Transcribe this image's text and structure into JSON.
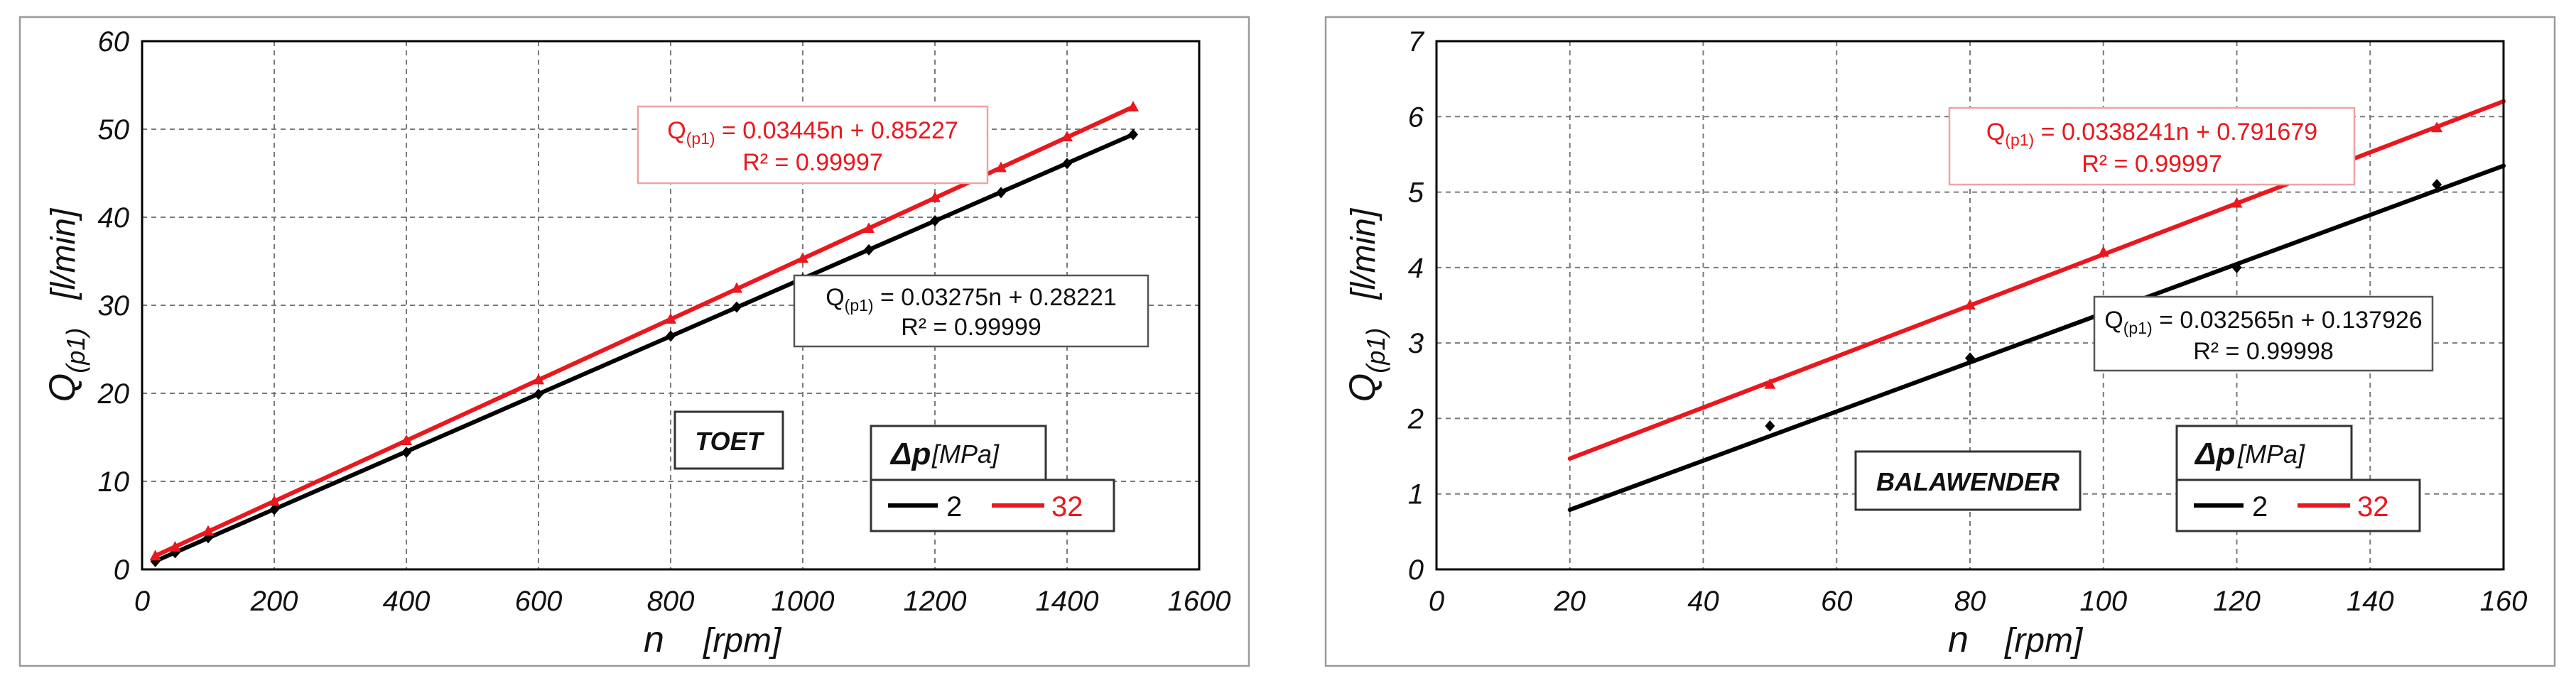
{
  "colors": {
    "series1": "#000000",
    "series2": "#e8181e",
    "grid": "#7a7a7a"
  },
  "chart_data": [
    {
      "type": "line",
      "xlabel": "n",
      "xunit": "[rpm]",
      "ylabel_main": "Q",
      "ylabel_sub": "(p1)",
      "yunit": "[l/min]",
      "xlim": [
        0,
        1600
      ],
      "ylim": [
        0,
        60
      ],
      "xticks": [
        0,
        200,
        400,
        600,
        800,
        1000,
        1200,
        1400,
        1600
      ],
      "yticks": [
        0,
        10,
        20,
        30,
        40,
        50,
        60
      ],
      "grid": true,
      "label": "TOET",
      "legend": {
        "title": "Δp",
        "unit": "[MPa]"
      },
      "series": [
        {
          "name": "2",
          "color": "#000000",
          "marker": "diamond",
          "fit": {
            "slope": 0.03275,
            "intercept": 0.28221,
            "xrange": [
              20,
              1500
            ]
          },
          "equation_prefix": "Q",
          "equation_sub": "(p1)",
          "equation_rest": " = 0.03275n + 0.28221",
          "r2": "R² = 0.99999",
          "x": [
            20,
            50,
            100,
            200,
            400,
            600,
            800,
            900,
            1000,
            1100,
            1200,
            1300,
            1400,
            1500
          ],
          "y": [
            0.9,
            1.9,
            3.6,
            6.8,
            13.3,
            19.9,
            26.5,
            29.8,
            33.0,
            36.3,
            39.6,
            42.8,
            46.1,
            49.4
          ]
        },
        {
          "name": "32",
          "color": "#e8181e",
          "marker": "triangle",
          "fit": {
            "slope": 0.03445,
            "intercept": 0.85227,
            "xrange": [
              20,
              1500
            ]
          },
          "equation_prefix": "Q",
          "equation_sub": "(p1)",
          "equation_rest": " = 0.03445n + 0.85227",
          "r2": "R² = 0.99997",
          "x": [
            20,
            50,
            100,
            200,
            400,
            600,
            800,
            900,
            1000,
            1100,
            1200,
            1300,
            1400,
            1500
          ],
          "y": [
            1.5,
            2.5,
            4.3,
            7.7,
            14.6,
            21.5,
            28.4,
            31.9,
            35.3,
            38.7,
            42.2,
            45.6,
            49.1,
            52.5
          ]
        }
      ]
    },
    {
      "type": "line",
      "xlabel": "n",
      "xunit": "[rpm]",
      "ylabel_main": "Q",
      "ylabel_sub": "(p1)",
      "yunit": "[l/min]",
      "xlim": [
        0,
        160
      ],
      "ylim": [
        0,
        7
      ],
      "xticks": [
        0,
        20,
        40,
        60,
        80,
        100,
        120,
        140,
        160
      ],
      "yticks": [
        0,
        1,
        2,
        3,
        4,
        5,
        6,
        7
      ],
      "grid": true,
      "label": "BALAWENDER",
      "legend": {
        "title": "Δp",
        "unit": "[MPa]"
      },
      "series": [
        {
          "name": "2",
          "color": "#000000",
          "marker": "diamond",
          "fit": {
            "slope": 0.032565,
            "intercept": 0.137926,
            "xrange": [
              20,
              160
            ]
          },
          "equation_prefix": "Q",
          "equation_sub": "(p1)",
          "equation_rest": " = 0.032565n + 0.137926",
          "r2": "R² = 0.99998",
          "x": [
            50,
            80,
            120,
            150
          ],
          "y": [
            1.9,
            2.8,
            4.0,
            5.1
          ]
        },
        {
          "name": "32",
          "color": "#e8181e",
          "marker": "triangle",
          "fit": {
            "slope": 0.0338241,
            "intercept": 0.791679,
            "xrange": [
              20,
              160
            ]
          },
          "equation_prefix": "Q",
          "equation_sub": "(p1)",
          "equation_rest": " = 0.0338241n + 0.791679",
          "r2": "R² = 0.99997",
          "x": [
            50,
            80,
            100,
            120,
            150
          ],
          "y": [
            2.45,
            3.5,
            4.2,
            4.85,
            5.85
          ]
        }
      ]
    }
  ]
}
